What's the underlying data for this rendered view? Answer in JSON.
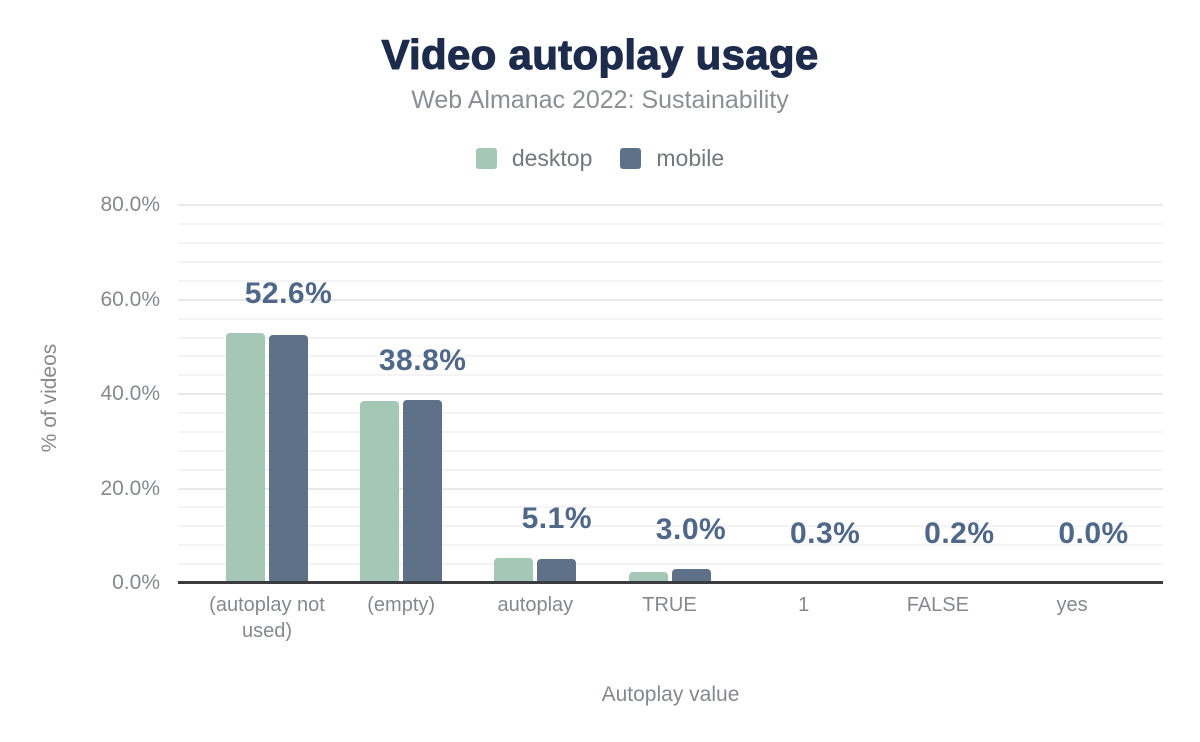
{
  "header": {
    "title": "Video autoplay usage",
    "subtitle": "Web Almanac 2022: Sustainability"
  },
  "legend": {
    "items": [
      {
        "label": "desktop",
        "color": "#a5c8b6"
      },
      {
        "label": "mobile",
        "color": "#5f7189"
      }
    ]
  },
  "chart_data": {
    "type": "bar",
    "title": "Video autoplay usage",
    "subtitle": "Web Almanac 2022: Sustainability",
    "categories": [
      "(autoplay not used)",
      "(empty)",
      "autoplay",
      "TRUE",
      "1",
      "FALSE",
      "yes"
    ],
    "series": [
      {
        "name": "desktop",
        "color": "#a5c8b6",
        "values": [
          53.0,
          38.5,
          5.2,
          2.4,
          0.3,
          0.2,
          0.0
        ]
      },
      {
        "name": "mobile",
        "color": "#5f7189",
        "values": [
          52.6,
          38.8,
          5.1,
          3.0,
          0.3,
          0.2,
          0.0
        ]
      }
    ],
    "bar_labels": {
      "labeled_series": "mobile",
      "values": [
        "52.6%",
        "38.8%",
        "5.1%",
        "3.0%",
        "0.3%",
        "0.2%",
        "0.0%"
      ]
    },
    "xlabel": "Autoplay value",
    "ylabel": "% of videos",
    "ylim": [
      0,
      80
    ],
    "yticks": [
      {
        "pct": 0,
        "label": "0.0%"
      },
      {
        "pct": 20,
        "label": "20.0%"
      },
      {
        "pct": 40,
        "label": "40.0%"
      },
      {
        "pct": 60,
        "label": "60.0%"
      },
      {
        "pct": 80,
        "label": "80.0%"
      }
    ],
    "grid": {
      "minor_step_pct": 4,
      "major_step_pct": 20,
      "minor_color": "#f4f4f6",
      "major_color": "#e8e8eb"
    },
    "legend_position": "top",
    "colors": {
      "title": "#1d2b4d",
      "subtitle": "#8b8f95",
      "tick_text": "#85898f",
      "data_label": "#4f6788",
      "axis_line": "#3a3c40",
      "background": "#ffffff"
    }
  }
}
